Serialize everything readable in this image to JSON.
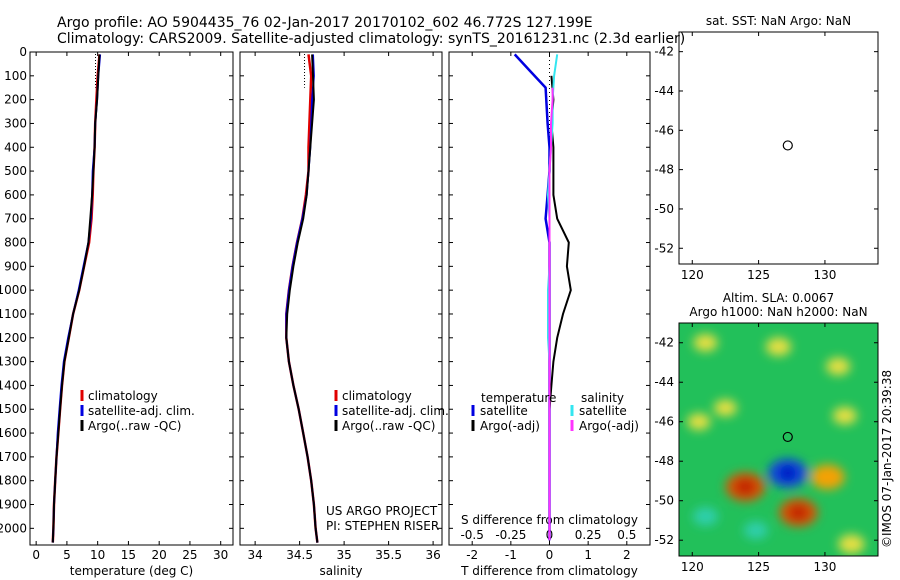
{
  "title_line1": "Argo profile: AO 5904435_76 02-Jan-2017 20170102_602 46.772S 127.199E",
  "title_line2": "Climatology: CARS2009. Satellite-adjusted climatology: synTS_20161231.nc (2.3d earlier)",
  "project_line1": "US ARGO PROJECT",
  "project_line2": "PI: STEPHEN RISER",
  "footer_stamp": "©IMOS 07-Jan-2017 20:39:38",
  "colors": {
    "red": "#e00000",
    "blue": "#0000e0",
    "black": "#000000",
    "cyan": "#33e6f0",
    "magenta": "#ff33ff"
  },
  "chart_data": [
    {
      "type": "line",
      "id": "temperature",
      "xlabel": "temperature (deg C)",
      "ylabel": "",
      "xlim": [
        -1,
        32
      ],
      "ylim": [
        0,
        2070
      ],
      "xticks": [
        0,
        5,
        10,
        15,
        20,
        25,
        30
      ],
      "xtick_labels": [
        "0",
        "5",
        "10",
        "15",
        "20",
        "25",
        "30"
      ],
      "yticks": [
        0,
        100,
        200,
        300,
        400,
        500,
        600,
        700,
        800,
        900,
        1000,
        1100,
        1200,
        1300,
        1400,
        1500,
        1600,
        1700,
        1800,
        1900,
        2000
      ],
      "ytick_labels": [
        "0",
        "100",
        "200",
        "300",
        "400",
        "500",
        "600",
        "700",
        "800",
        "900",
        "1000",
        "1100",
        "1200",
        "1300",
        "1400",
        "1500",
        "1600",
        "1700",
        "1800",
        "1900",
        "2000"
      ],
      "legend": [
        "climatology",
        "satellite-adj. clim.",
        "Argo(..raw -QC)"
      ],
      "series": [
        {
          "name": "climatology",
          "color": "red",
          "x": [
            10.3,
            10.0,
            9.8,
            9.6,
            9.5,
            9.3,
            9.2,
            9.0,
            8.6,
            7.8,
            7.0,
            6.0,
            5.3,
            4.6,
            4.2,
            3.9,
            3.6,
            3.3,
            3.1,
            2.9,
            2.8,
            2.7
          ],
          "y": [
            10,
            100,
            200,
            300,
            400,
            500,
            600,
            700,
            800,
            900,
            1000,
            1100,
            1200,
            1300,
            1400,
            1500,
            1600,
            1700,
            1800,
            1900,
            2000,
            2060
          ]
        },
        {
          "name": "satellite-adj. clim.",
          "color": "blue",
          "x": [
            10.4,
            10.1,
            9.9,
            9.6,
            9.5,
            9.2,
            9.1,
            8.9,
            8.5,
            7.7,
            6.9,
            6.0,
            5.2,
            4.5,
            4.1,
            3.8,
            3.5,
            3.3,
            3.1,
            2.9,
            2.8,
            2.7
          ],
          "y": [
            10,
            100,
            200,
            300,
            400,
            500,
            600,
            700,
            800,
            900,
            1000,
            1100,
            1200,
            1300,
            1400,
            1500,
            1600,
            1700,
            1800,
            1900,
            2000,
            2060
          ]
        },
        {
          "name": "Argo(..raw -QC)",
          "color": "black",
          "x": [
            10.3,
            10.1,
            9.9,
            9.6,
            9.5,
            9.3,
            9.1,
            8.8,
            8.5,
            7.8,
            7.0,
            6.0,
            5.3,
            4.6,
            4.2,
            3.9,
            3.6,
            3.3,
            3.1,
            2.9,
            2.8,
            2.7
          ],
          "y": [
            10,
            100,
            200,
            300,
            400,
            500,
            600,
            700,
            800,
            900,
            1000,
            1100,
            1200,
            1300,
            1400,
            1500,
            1600,
            1700,
            1800,
            1900,
            2000,
            2060
          ]
        }
      ]
    },
    {
      "type": "line",
      "id": "salinity",
      "xlabel": "salinity",
      "ylabel": "",
      "xlim": [
        33.83,
        36.1
      ],
      "ylim": [
        0,
        2070
      ],
      "xticks": [
        34,
        34.5,
        35,
        35.5,
        36
      ],
      "xtick_labels": [
        "34",
        "34.5",
        "35",
        "35.5",
        "36"
      ],
      "legend": [
        "climatology",
        "satellite-adj. clim.",
        "Argo(..raw -QC)"
      ],
      "series": [
        {
          "name": "climatology",
          "color": "red",
          "x": [
            34.6,
            34.63,
            34.62,
            34.61,
            34.6,
            34.6,
            34.57,
            34.53,
            34.47,
            34.42,
            34.38,
            34.35,
            34.35,
            34.38,
            34.43,
            34.49,
            34.54,
            34.59,
            34.63,
            34.66,
            34.68,
            34.7
          ],
          "y": [
            10,
            100,
            200,
            300,
            400,
            500,
            600,
            700,
            800,
            900,
            1000,
            1100,
            1200,
            1300,
            1400,
            1500,
            1600,
            1700,
            1800,
            1900,
            2000,
            2060
          ]
        },
        {
          "name": "satellite-adj. clim.",
          "color": "blue",
          "x": [
            34.65,
            34.66,
            34.64,
            34.63,
            34.62,
            34.6,
            34.58,
            34.53,
            34.47,
            34.42,
            34.38,
            34.35,
            34.35,
            34.38,
            34.43,
            34.49,
            34.54,
            34.59,
            34.63,
            34.66,
            34.68,
            34.7
          ],
          "y": [
            10,
            100,
            200,
            300,
            400,
            500,
            600,
            700,
            800,
            900,
            1000,
            1100,
            1200,
            1300,
            1400,
            1500,
            1600,
            1700,
            1800,
            1900,
            2000,
            2060
          ]
        },
        {
          "name": "Argo(..raw -QC)",
          "color": "black",
          "x": [
            34.64,
            34.65,
            34.66,
            34.64,
            34.62,
            34.6,
            34.58,
            34.54,
            34.48,
            34.43,
            34.39,
            34.36,
            34.35,
            34.38,
            34.43,
            34.49,
            34.54,
            34.59,
            34.63,
            34.66,
            34.68,
            34.7
          ],
          "y": [
            10,
            100,
            200,
            300,
            400,
            500,
            600,
            700,
            800,
            900,
            1000,
            1100,
            1200,
            1300,
            1400,
            1500,
            1600,
            1700,
            1800,
            1900,
            2000,
            2060
          ]
        }
      ]
    },
    {
      "type": "line",
      "id": "difference",
      "xlabel": "T difference from climatology",
      "xlabel_top": "S difference from climatology",
      "xlim": [
        -2.6,
        2.6
      ],
      "ylim": [
        0,
        2070
      ],
      "xticks": [
        -2,
        -1,
        0,
        1,
        2
      ],
      "xtick_labels": [
        "-2",
        "-1",
        "0",
        "1",
        "2"
      ],
      "xticks_s": [
        -0.5,
        -0.25,
        0,
        0.25,
        0.5
      ],
      "xtick_labels_s": [
        "-0.5",
        "-0.25",
        "0",
        "0.25",
        "0.5"
      ],
      "s_scale_factor": 4,
      "legend_temperature_header": "temperature",
      "legend_salinity_header": "salinity",
      "legend": [
        "satellite",
        "Argo(-adj)",
        "satellite",
        "Argo(-adj)"
      ],
      "series": [
        {
          "name": "temperature satellite",
          "color": "blue",
          "x": [
            -0.9,
            -0.5,
            -0.1,
            -0.05,
            0.0,
            0.0,
            -0.05,
            -0.1,
            0.0,
            0.0,
            0.0,
            0.0,
            0.0,
            0.0,
            0.0,
            0.0,
            0.0,
            0.0,
            0.0,
            0.0,
            0.0
          ],
          "y": [
            10,
            80,
            150,
            300,
            400,
            500,
            600,
            700,
            800,
            900,
            1000,
            1100,
            1200,
            1300,
            1400,
            1500,
            1600,
            1700,
            1800,
            1900,
            2050
          ]
        },
        {
          "name": "temperature Argo(-adj)",
          "color": "black",
          "x": [
            0.05,
            0.1,
            0.05,
            0.1,
            0.1,
            0.1,
            0.2,
            0.35,
            0.5,
            0.45,
            0.55,
            0.35,
            0.2,
            0.1,
            0.05,
            0.0,
            0.0,
            0.0,
            0.0,
            0.0,
            0.0
          ],
          "y": [
            100,
            200,
            300,
            400,
            500,
            600,
            700,
            750,
            800,
            900,
            1000,
            1100,
            1200,
            1300,
            1400,
            1500,
            1600,
            1700,
            1800,
            1900,
            2050
          ]
        },
        {
          "name": "salinity satellite",
          "color": "cyan",
          "x": [
            0.05,
            0.03,
            0.02,
            0.02,
            0.01,
            0.0,
            -0.01,
            0.0,
            0.0,
            0.0,
            -0.01,
            -0.01,
            -0.01,
            0.0,
            0.0,
            0.0,
            0.0,
            0.0,
            0.0,
            0.0,
            0.0
          ],
          "y": [
            10,
            100,
            200,
            300,
            400,
            500,
            600,
            700,
            800,
            900,
            1000,
            1100,
            1200,
            1300,
            1400,
            1500,
            1600,
            1700,
            1800,
            1900,
            2050
          ]
        },
        {
          "name": "salinity Argo(-adj)",
          "color": "magenta",
          "x": [
            0.02,
            0.02,
            0.01,
            0.01,
            0.0,
            0.0,
            0.0,
            0.0,
            0.0,
            0.0,
            0.0,
            0.0,
            0.0,
            0.0,
            0.0,
            0.0,
            0.0,
            0.0,
            0.0,
            0.0,
            0.0
          ],
          "y": [
            150,
            200,
            300,
            400,
            500,
            600,
            700,
            800,
            900,
            1000,
            1100,
            1200,
            1300,
            1400,
            1500,
            1600,
            1700,
            1800,
            1900,
            2000,
            2050
          ]
        }
      ]
    },
    {
      "type": "scatter",
      "id": "sst_map",
      "title": "sat. SST: NaN  Argo: NaN",
      "xlim": [
        119,
        134
      ],
      "ylim": [
        -52.8,
        -41
      ],
      "xticks": [
        120,
        125,
        130
      ],
      "xtick_labels": [
        "120",
        "125",
        "130"
      ],
      "yticks": [
        -42,
        -44,
        -46,
        -48,
        -50,
        -52
      ],
      "ytick_labels": [
        "-42",
        "-44",
        "-46",
        "-48",
        "-50",
        "-52"
      ],
      "points": [
        {
          "lon": 127.2,
          "lat": -46.77
        }
      ]
    },
    {
      "type": "heatmap",
      "id": "sla_map",
      "title_line1": "Altim. SLA: 0.0067",
      "title_line2": "Argo h1000: NaN  h2000: NaN",
      "xlim": [
        119,
        134
      ],
      "ylim": [
        -52.8,
        -41
      ],
      "xticks": [
        120,
        125,
        130
      ],
      "xtick_labels": [
        "120",
        "125",
        "130"
      ],
      "yticks": [
        -42,
        -44,
        -46,
        -48,
        -50,
        -52
      ],
      "ytick_labels": [
        "-42",
        "-44",
        "-46",
        "-48",
        "-50",
        "-52"
      ],
      "background": "#22c05a",
      "features": [
        {
          "lon": 121.0,
          "lat": -42.0,
          "value": 0.3
        },
        {
          "lon": 126.5,
          "lat": -42.2,
          "value": 0.35
        },
        {
          "lon": 131.0,
          "lat": -43.2,
          "value": 0.3
        },
        {
          "lon": 122.5,
          "lat": -45.3,
          "value": 0.25
        },
        {
          "lon": 131.5,
          "lat": -45.7,
          "value": 0.3
        },
        {
          "lon": 120.5,
          "lat": -46.0,
          "value": 0.25
        },
        {
          "lon": 124.0,
          "lat": -49.3,
          "value": 1.0
        },
        {
          "lon": 127.2,
          "lat": -48.6,
          "value": -1.0
        },
        {
          "lon": 130.2,
          "lat": -48.8,
          "value": 0.75
        },
        {
          "lon": 128.0,
          "lat": -50.6,
          "value": 0.95
        },
        {
          "lon": 121.0,
          "lat": -50.8,
          "value": -0.35
        },
        {
          "lon": 132.0,
          "lat": -52.2,
          "value": 0.4
        },
        {
          "lon": 124.8,
          "lat": -51.5,
          "value": -0.3
        }
      ],
      "points": [
        {
          "lon": 127.2,
          "lat": -46.77
        }
      ]
    }
  ]
}
